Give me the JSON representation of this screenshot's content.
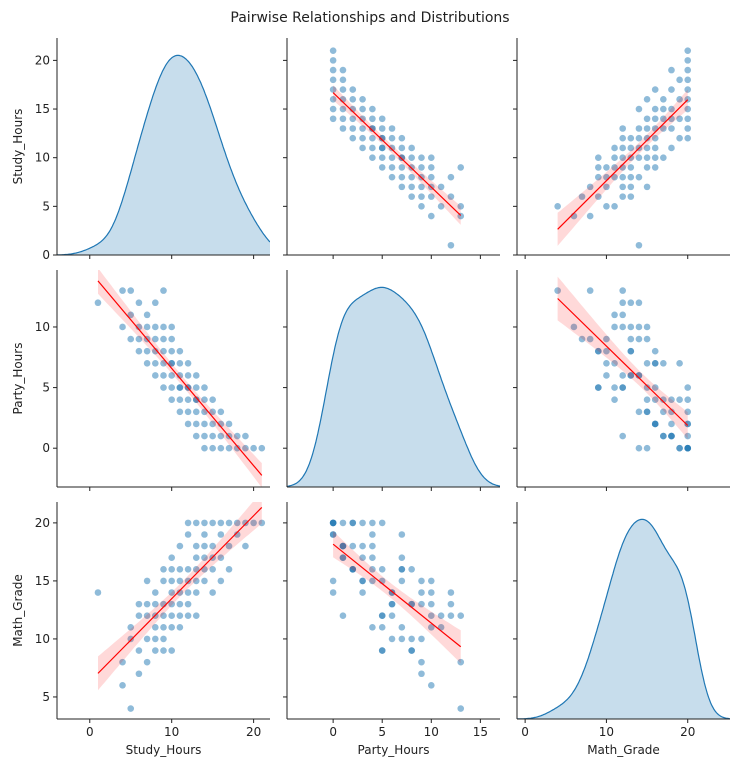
{
  "chart_data": {
    "type": "pairplot",
    "title": "Pairwise Relationships and Distributions",
    "color": "#1f77b4",
    "reg_color": "#ff0000",
    "variables": [
      {
        "name": "Study_Hours",
        "lim": [
          -4,
          22
        ],
        "ticks": [
          0,
          10,
          20
        ],
        "values": [
          1,
          4,
          4,
          5,
          5,
          5,
          6,
          6,
          6,
          6,
          7,
          7,
          7,
          7,
          7,
          8,
          8,
          8,
          8,
          8,
          8,
          9,
          9,
          9,
          9,
          9,
          9,
          9,
          10,
          10,
          10,
          10,
          10,
          10,
          10,
          10,
          11,
          11,
          11,
          11,
          11,
          11,
          11,
          12,
          12,
          12,
          12,
          12,
          12,
          12,
          13,
          13,
          13,
          13,
          13,
          13,
          13,
          14,
          14,
          14,
          14,
          14,
          14,
          15,
          15,
          15,
          15,
          15,
          16,
          16,
          16,
          16,
          17,
          17,
          17,
          18,
          18,
          19,
          19,
          20,
          21
        ]
      },
      {
        "name": "Party_Hours",
        "lim": [
          -4.7,
          17
        ],
        "ticks": [
          0,
          5,
          10,
          15
        ],
        "values": [
          12,
          13,
          10,
          13,
          9,
          11,
          10,
          8,
          12,
          9,
          9,
          10,
          11,
          7,
          8,
          10,
          9,
          8,
          6,
          12,
          7,
          13,
          8,
          7,
          9,
          6,
          10,
          5,
          8,
          7,
          6,
          9,
          5,
          10,
          4,
          7,
          6,
          5,
          7,
          4,
          8,
          3,
          5,
          5,
          6,
          4,
          7,
          3,
          5,
          2,
          5,
          4,
          3,
          6,
          1,
          2,
          4,
          3,
          4,
          2,
          5,
          0,
          1,
          3,
          2,
          4,
          0,
          1,
          2,
          1,
          0,
          3,
          1,
          0,
          2,
          1,
          0,
          0,
          1,
          0,
          0
        ]
      },
      {
        "name": "Math_Grade",
        "lim": [
          -1,
          25.2
        ],
        "ticks": [
          0,
          10,
          20
        ],
        "values": [
          14,
          8,
          6,
          4,
          10,
          11,
          12,
          9,
          13,
          7,
          8,
          13,
          12,
          15,
          10,
          11,
          14,
          9,
          13,
          12,
          10,
          12,
          16,
          11,
          13,
          10,
          15,
          9,
          13,
          17,
          12,
          15,
          9,
          14,
          11,
          16,
          14,
          12,
          16,
          18,
          13,
          15,
          11,
          16,
          13,
          15,
          19,
          14,
          12,
          20,
          15,
          17,
          20,
          14,
          12,
          18,
          16,
          17,
          19,
          16,
          20,
          15,
          18,
          18,
          16,
          20,
          14,
          17,
          20,
          17,
          19,
          15,
          18,
          20,
          16,
          20,
          19,
          20,
          18,
          20,
          20
        ]
      }
    ],
    "row_lims": [
      [
        0,
        22.3
      ],
      [
        -3.2,
        14.7
      ],
      [
        3.1,
        21.8
      ]
    ],
    "row_ticks": [
      [
        0,
        5,
        10,
        15,
        20
      ],
      [
        0,
        5,
        10
      ],
      [
        5,
        10,
        15,
        20
      ]
    ]
  }
}
